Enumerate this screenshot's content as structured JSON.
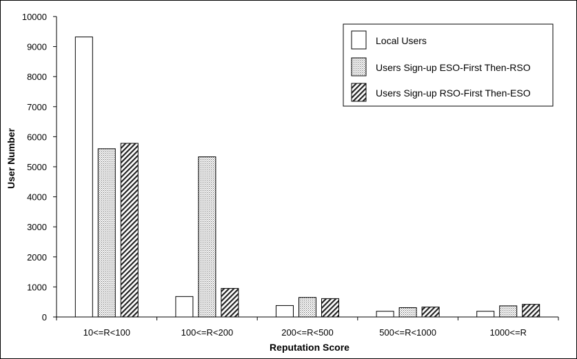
{
  "chart_data": {
    "type": "bar",
    "title": "",
    "xlabel": "Reputation Score",
    "ylabel": "User Number",
    "ylim": [
      0,
      10000
    ],
    "yticks": [
      0,
      1000,
      2000,
      3000,
      4000,
      5000,
      6000,
      7000,
      8000,
      9000,
      10000
    ],
    "grid": false,
    "legend_position": "top-right",
    "categories": [
      "10<=R<100",
      "100<=R<200",
      "200<=R<500",
      "500<=R<1000",
      "1000<=R"
    ],
    "series": [
      {
        "name": "Local Users",
        "pattern": "solid-white",
        "values": [
          9320,
          680,
          380,
          190,
          190
        ]
      },
      {
        "name": "Users Sign-up ESO-First Then-RSO",
        "pattern": "dotted",
        "values": [
          5600,
          5330,
          650,
          310,
          370
        ]
      },
      {
        "name": "Users Sign-up RSO-First Then-ESO",
        "pattern": "hatched",
        "values": [
          5780,
          950,
          610,
          330,
          420
        ]
      }
    ]
  }
}
